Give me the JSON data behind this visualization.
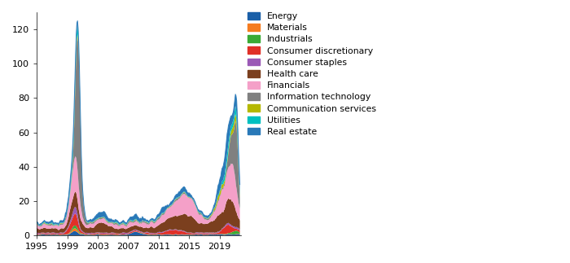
{
  "sectors": [
    "Energy",
    "Materials",
    "Industrials",
    "Consumer discretionary",
    "Consumer staples",
    "Health care",
    "Financials",
    "Information technology",
    "Communication services",
    "Utilities",
    "Real estate"
  ],
  "colors": [
    "#1a5fa8",
    "#f57c20",
    "#3aaa35",
    "#e03027",
    "#9b59b6",
    "#7b3f1e",
    "#f4a0c8",
    "#808080",
    "#b5b800",
    "#00c0c0",
    "#2979b8"
  ],
  "xlim": [
    1995.0,
    2021.8
  ],
  "ylim": [
    0,
    130
  ],
  "yticks": [
    0,
    20,
    40,
    60,
    80,
    100,
    120
  ],
  "xticks": [
    1995,
    1999,
    2003,
    2007,
    2011,
    2015,
    2019
  ],
  "xticklabels": [
    "1995",
    "1999",
    "2003",
    "2007",
    "2011",
    "2015",
    "2019"
  ]
}
